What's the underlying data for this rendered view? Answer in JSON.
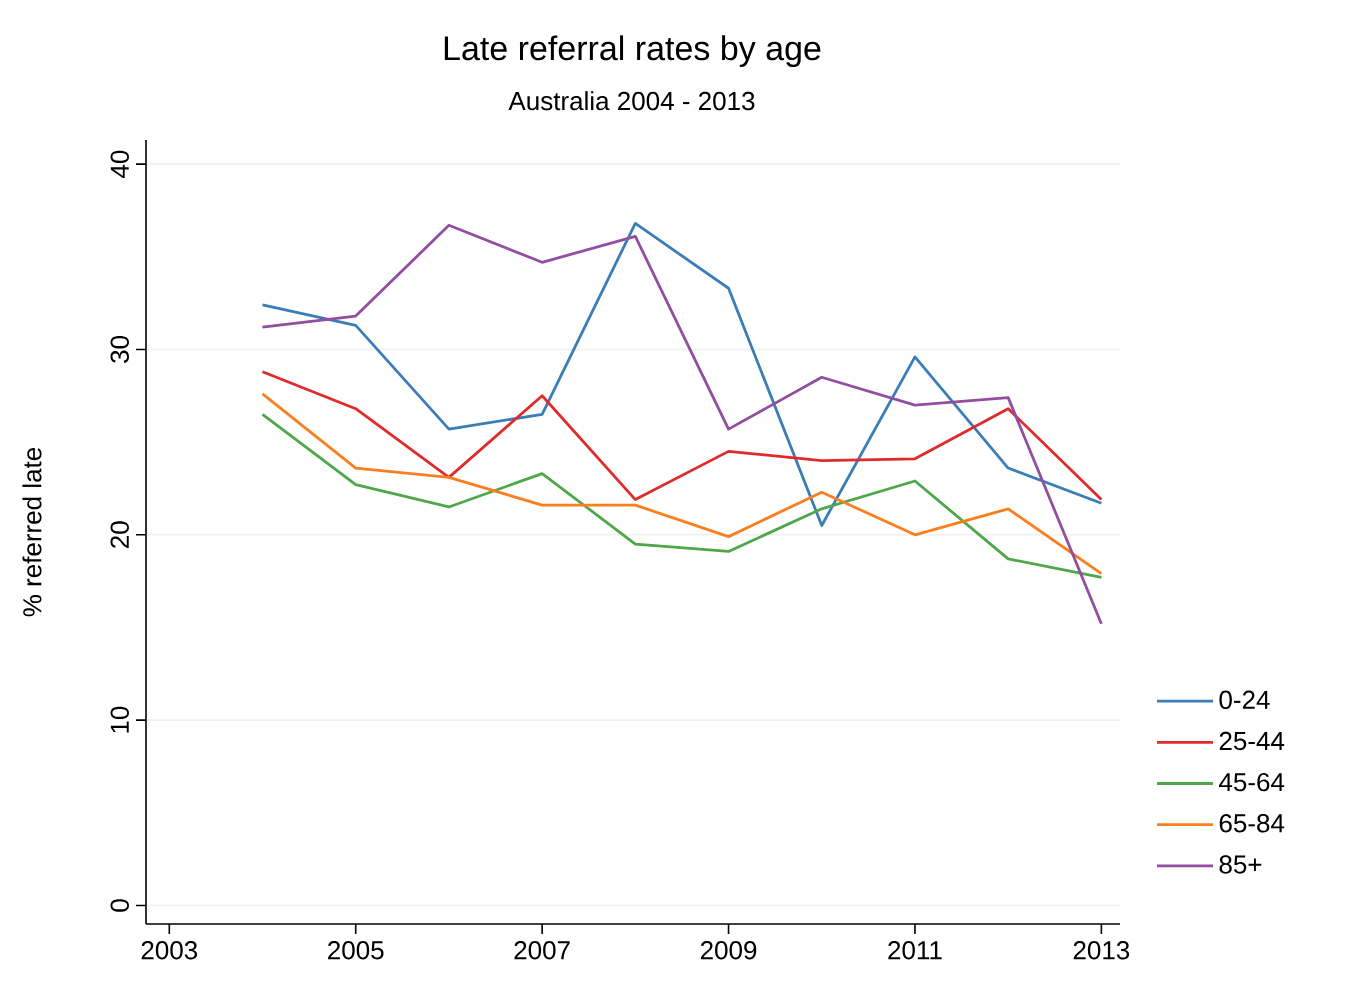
{
  "chart_data": {
    "type": "line",
    "title": "Late referral rates by age",
    "subtitle": "Australia 2004 - 2013",
    "ylabel": "% referred late",
    "x": [
      2004,
      2005,
      2006,
      2007,
      2008,
      2009,
      2010,
      2011,
      2012,
      2013
    ],
    "series": [
      {
        "name": "0-24",
        "color": "#3a7db7",
        "values": [
          32.4,
          31.3,
          25.7,
          26.5,
          36.8,
          33.3,
          20.5,
          29.6,
          23.6,
          21.7
        ]
      },
      {
        "name": "25-44",
        "color": "#e02b2c",
        "values": [
          28.8,
          26.8,
          23.1,
          27.5,
          21.9,
          24.5,
          24.0,
          24.1,
          26.8,
          21.9
        ]
      },
      {
        "name": "45-64",
        "color": "#4ea74a",
        "values": [
          26.5,
          22.7,
          21.5,
          23.3,
          19.5,
          19.1,
          21.4,
          22.9,
          18.7,
          17.7
        ]
      },
      {
        "name": "65-84",
        "color": "#fb7f1e",
        "values": [
          27.6,
          23.6,
          23.1,
          21.6,
          21.6,
          19.9,
          22.3,
          20.0,
          21.4,
          17.9
        ]
      },
      {
        "name": "85+",
        "color": "#924ea0",
        "values": [
          31.2,
          31.8,
          36.7,
          34.7,
          36.1,
          25.7,
          28.5,
          27.0,
          27.4,
          15.2
        ]
      }
    ],
    "xlim": [
      2002.75,
      2013.2
    ],
    "ylim": [
      -1,
      41.3
    ],
    "xticks": [
      2003,
      2005,
      2007,
      2009,
      2011,
      2013
    ],
    "yticks": [
      0,
      10,
      20,
      30,
      40
    ],
    "grid": "y",
    "legend": "right",
    "marker": "none",
    "line_style": "solid"
  }
}
